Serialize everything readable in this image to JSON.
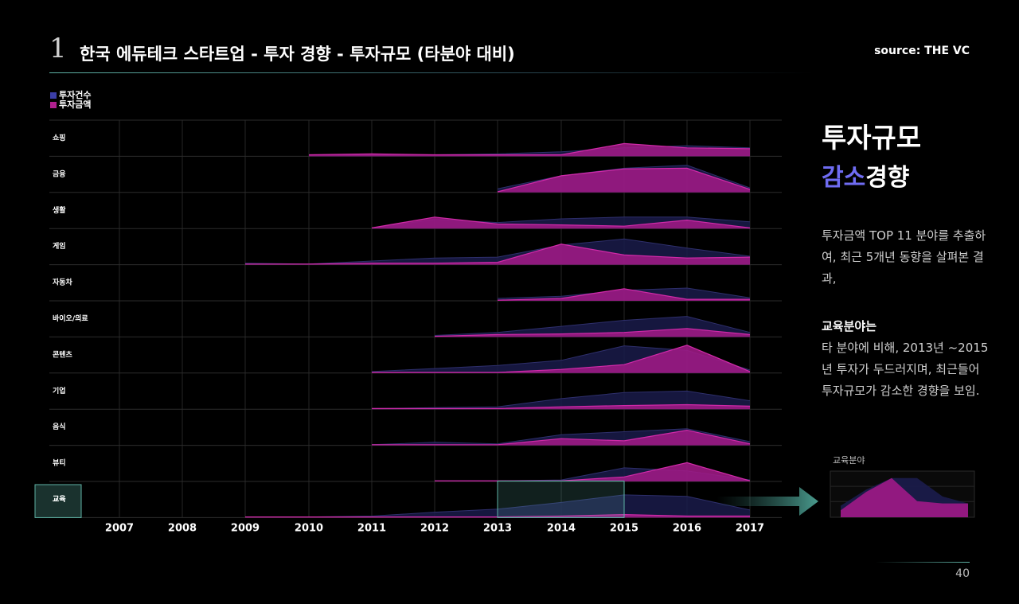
{
  "header": {
    "number": "1",
    "title": "한국 에듀테크 스타트업 - 투자 경향 - 투자규모 (타분야 대비)",
    "source": "source: THE VC"
  },
  "legend": [
    {
      "label": "투자건수",
      "color": "#3b3ea8"
    },
    {
      "label": "투자금액",
      "color": "#b0208f"
    }
  ],
  "chart_data": {
    "type": "area",
    "x": [
      "2007",
      "2008",
      "2009",
      "2010",
      "2011",
      "2012",
      "2013",
      "2014",
      "2015",
      "2016",
      "2017"
    ],
    "series_names": [
      "투자건수",
      "투자금액"
    ],
    "rows": [
      {
        "label": "쇼핑",
        "count": [
          null,
          null,
          null,
          0.05,
          0.05,
          0.05,
          0.08,
          0.15,
          0.28,
          0.35,
          0.28
        ],
        "amount": [
          null,
          null,
          null,
          0.05,
          0.08,
          0.05,
          0.05,
          0.05,
          0.42,
          0.28,
          0.25
        ]
      },
      {
        "label": "금융",
        "count": [
          null,
          null,
          null,
          null,
          null,
          null,
          0.12,
          0.55,
          0.8,
          0.9,
          0.15
        ],
        "amount": [
          null,
          null,
          null,
          null,
          null,
          null,
          0.02,
          0.55,
          0.78,
          0.8,
          0.1
        ]
      },
      {
        "label": "생활",
        "count": [
          null,
          null,
          null,
          null,
          0.02,
          0.3,
          0.2,
          0.32,
          0.38,
          0.38,
          0.22
        ],
        "amount": [
          null,
          null,
          null,
          null,
          0.02,
          0.38,
          0.15,
          0.12,
          0.08,
          0.28,
          0.02
        ]
      },
      {
        "label": "게임",
        "count": [
          null,
          null,
          0.05,
          0.02,
          0.12,
          0.22,
          0.25,
          0.65,
          0.85,
          0.55,
          0.28
        ],
        "amount": [
          null,
          null,
          0.02,
          0.02,
          0.05,
          0.05,
          0.08,
          0.68,
          0.32,
          0.22,
          0.25
        ]
      },
      {
        "label": "자동차",
        "count": [
          null,
          null,
          null,
          null,
          null,
          null,
          0.08,
          0.15,
          0.35,
          0.42,
          0.1
        ],
        "amount": [
          null,
          null,
          null,
          null,
          null,
          null,
          0.02,
          0.08,
          0.4,
          0.05,
          0.05
        ]
      },
      {
        "label": "바이오/의료",
        "count": [
          null,
          null,
          null,
          null,
          null,
          0.05,
          0.15,
          0.35,
          0.55,
          0.68,
          0.15
        ],
        "amount": [
          null,
          null,
          null,
          null,
          null,
          0.02,
          0.08,
          0.1,
          0.15,
          0.28,
          0.08
        ]
      },
      {
        "label": "콘텐츠",
        "count": [
          null,
          null,
          null,
          null,
          0.05,
          0.15,
          0.25,
          0.42,
          0.9,
          0.75,
          0.1
        ],
        "amount": [
          null,
          null,
          null,
          null,
          0.02,
          0.02,
          0.02,
          0.12,
          0.28,
          0.92,
          0.05
        ]
      },
      {
        "label": "기업",
        "count": [
          null,
          null,
          null,
          null,
          0.02,
          0.05,
          0.08,
          0.35,
          0.55,
          0.6,
          0.28
        ],
        "amount": [
          null,
          null,
          null,
          null,
          0.02,
          0.02,
          0.02,
          0.08,
          0.12,
          0.15,
          0.1
        ]
      },
      {
        "label": "음식",
        "count": [
          null,
          null,
          null,
          null,
          0.02,
          0.1,
          0.05,
          0.35,
          0.45,
          0.55,
          0.12
        ],
        "amount": [
          null,
          null,
          null,
          null,
          0.02,
          0.02,
          0.02,
          0.22,
          0.15,
          0.5,
          0.05
        ]
      },
      {
        "label": "뷰티",
        "count": [
          null,
          null,
          null,
          null,
          null,
          0.02,
          0.02,
          0.05,
          0.45,
          0.35,
          0.05
        ],
        "amount": [
          null,
          null,
          null,
          null,
          null,
          0.02,
          0.02,
          0.02,
          0.15,
          0.62,
          0.02
        ]
      },
      {
        "label": "교육",
        "count": [
          null,
          null,
          0.02,
          0.02,
          0.05,
          0.18,
          0.28,
          0.5,
          0.75,
          0.7,
          0.25
        ],
        "amount": [
          null,
          null,
          0.02,
          0.02,
          0.02,
          0.02,
          0.02,
          0.05,
          0.1,
          0.05,
          0.05
        ]
      }
    ],
    "highlight_row": "교육",
    "highlight_range": [
      "2013",
      "2015"
    ]
  },
  "right_panel": {
    "title_line1": "투자규모",
    "title_line2_highlight": "감소",
    "title_line2_rest": "경향",
    "para1": "투자금액 TOP 11 분야를 추출하여, 최근 5개년 동향을 살펴본 결과,",
    "para2_bold": "교육분야는",
    "para2": "타 분야에 비해, 2013년 ~2015년 투자가 두드러지며, 최근들어 투자규모가 감소한 경향을 보임."
  },
  "mini_chart": {
    "title": "교육분야",
    "count": [
      0.25,
      0.6,
      0.85,
      0.85,
      0.45,
      0.3
    ],
    "amount": [
      0.15,
      0.55,
      0.85,
      0.35,
      0.3,
      0.3
    ]
  },
  "page_number": "40"
}
